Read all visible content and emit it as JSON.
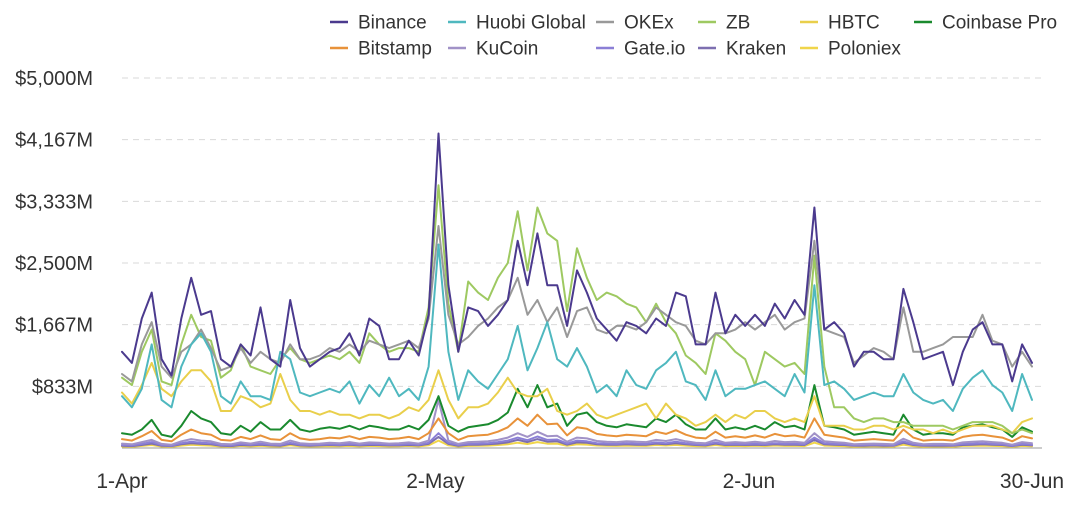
{
  "chart_data": {
    "type": "line",
    "yaxis": {
      "min": 0,
      "max": 5000,
      "unit": "M",
      "ticks": [
        833,
        1667,
        2500,
        3333,
        4167,
        5000
      ],
      "tick_labels": [
        "$833M",
        "$1,667M",
        "$2,500M",
        "$3,333M",
        "$4,167M",
        "$5,000M"
      ],
      "grid": true
    },
    "xaxis": {
      "tick_dates": [
        "2020-04-01",
        "2020-05-02",
        "2020-06-02",
        "2020-06-30"
      ],
      "tick_labels": [
        "1-Apr",
        "2-May",
        "2-Jun",
        "30-Jun"
      ]
    },
    "legend_position": "top",
    "series": [
      {
        "name": "Binance",
        "color": "#4b3a8e",
        "values": [
          1300,
          1150,
          1750,
          2100,
          1200,
          980,
          1750,
          2300,
          1800,
          1850,
          1200,
          1100,
          1400,
          1250,
          1900,
          1200,
          1100,
          2000,
          1350,
          1100,
          1200,
          1300,
          1350,
          1550,
          1250,
          1750,
          1650,
          1200,
          1200,
          1450,
          1250,
          1800,
          4250,
          2200,
          1300,
          1900,
          1850,
          1650,
          1800,
          2000,
          2800,
          2200,
          2900,
          2200,
          2200,
          1650,
          2400,
          2100,
          1750,
          1600,
          1450,
          1700,
          1650,
          1550,
          1750,
          1650,
          2100,
          2050,
          1400,
          1400,
          2100,
          1550,
          1800,
          1650,
          1800,
          1650,
          1950,
          1750,
          2000,
          1800,
          3250,
          1600,
          1700,
          1550,
          1100,
          1300,
          1300,
          1200,
          1200,
          2150,
          1700,
          1200,
          1250,
          1300,
          850,
          1300,
          1600,
          1700,
          1400,
          1400,
          900,
          1400,
          1150
        ]
      },
      {
        "name": "Huobi Global",
        "color": "#4fb8bf",
        "values": [
          700,
          550,
          800,
          1400,
          650,
          550,
          1100,
          1400,
          1550,
          1300,
          700,
          600,
          900,
          700,
          700,
          650,
          1300,
          1200,
          750,
          700,
          750,
          800,
          750,
          900,
          600,
          850,
          700,
          950,
          700,
          800,
          650,
          1100,
          2750,
          1300,
          650,
          1050,
          900,
          800,
          1000,
          1200,
          1650,
          1050,
          1350,
          1700,
          1200,
          1100,
          1350,
          1100,
          750,
          850,
          700,
          1050,
          850,
          800,
          1050,
          1150,
          1300,
          900,
          850,
          650,
          1050,
          700,
          800,
          800,
          850,
          900,
          800,
          700,
          1000,
          750,
          2200,
          850,
          900,
          800,
          650,
          700,
          750,
          700,
          700,
          1000,
          750,
          650,
          600,
          650,
          500,
          800,
          950,
          1050,
          850,
          750,
          500,
          1000,
          650
        ]
      },
      {
        "name": "OKEx",
        "color": "#999999",
        "values": [
          1000,
          900,
          1400,
          1700,
          1100,
          950,
          1300,
          1400,
          1600,
          1350,
          1050,
          1100,
          1350,
          1150,
          1300,
          1200,
          1150,
          1400,
          1200,
          1200,
          1250,
          1350,
          1300,
          1400,
          1300,
          1450,
          1400,
          1350,
          1400,
          1450,
          1350,
          1750,
          3000,
          1800,
          1400,
          1500,
          1650,
          1750,
          1900,
          2000,
          2300,
          1800,
          2000,
          1700,
          1900,
          1500,
          1850,
          1900,
          1600,
          1550,
          1650,
          1650,
          1600,
          1700,
          1900,
          1800,
          1700,
          1650,
          1450,
          1400,
          1550,
          1550,
          1600,
          1700,
          1600,
          1700,
          1800,
          1600,
          1700,
          1750,
          2800,
          1600,
          1550,
          1500,
          1150,
          1250,
          1350,
          1300,
          1200,
          1900,
          1300,
          1300,
          1350,
          1400,
          1500,
          1500,
          1500,
          1800,
          1450,
          1400,
          1100,
          1300,
          1100
        ]
      },
      {
        "name": "ZB",
        "color": "#9ec961",
        "values": [
          950,
          850,
          1300,
          1600,
          900,
          850,
          1400,
          1800,
          1500,
          1450,
          950,
          1050,
          1400,
          1100,
          1050,
          1000,
          1200,
          1350,
          1200,
          1150,
          1200,
          1250,
          1200,
          1300,
          1150,
          1550,
          1400,
          1300,
          1350,
          1350,
          1300,
          1900,
          3550,
          1950,
          1300,
          2250,
          2100,
          2000,
          2300,
          2500,
          3200,
          2400,
          3250,
          2900,
          2800,
          1850,
          2700,
          2300,
          2000,
          2100,
          2050,
          1950,
          1900,
          1700,
          1950,
          1700,
          1550,
          1250,
          1150,
          1000,
          1550,
          1450,
          1300,
          1200,
          850,
          1300,
          1200,
          1100,
          1150,
          1000,
          2600,
          1100,
          550,
          550,
          400,
          350,
          400,
          400,
          350,
          350,
          300,
          300,
          300,
          300,
          250,
          300,
          350,
          350,
          350,
          300,
          200,
          250,
          200
        ]
      },
      {
        "name": "HBTC",
        "color": "#e9cf4b",
        "values": [
          750,
          600,
          850,
          1150,
          800,
          700,
          900,
          1050,
          1050,
          900,
          500,
          500,
          700,
          650,
          550,
          600,
          1000,
          650,
          500,
          500,
          450,
          500,
          450,
          450,
          400,
          450,
          450,
          400,
          450,
          550,
          500,
          650,
          1050,
          650,
          400,
          550,
          550,
          600,
          750,
          950,
          750,
          700,
          700,
          800,
          500,
          450,
          500,
          600,
          450,
          400,
          450,
          500,
          550,
          600,
          400,
          600,
          450,
          400,
          300,
          350,
          450,
          350,
          450,
          400,
          500,
          500,
          400,
          350,
          400,
          350,
          700,
          300,
          300,
          300,
          250,
          250,
          300,
          300,
          250,
          300,
          250,
          250,
          200,
          250,
          200,
          250,
          300,
          300,
          300,
          250,
          200,
          350,
          400
        ]
      },
      {
        "name": "Coinbase Pro",
        "color": "#1a8a2e",
        "values": [
          200,
          180,
          250,
          380,
          180,
          150,
          300,
          500,
          400,
          350,
          200,
          180,
          300,
          220,
          350,
          250,
          250,
          380,
          250,
          220,
          260,
          280,
          260,
          300,
          250,
          300,
          280,
          250,
          250,
          300,
          250,
          380,
          700,
          300,
          220,
          280,
          300,
          320,
          380,
          480,
          800,
          550,
          850,
          550,
          600,
          300,
          450,
          480,
          350,
          300,
          280,
          320,
          300,
          280,
          400,
          350,
          450,
          320,
          250,
          250,
          400,
          250,
          280,
          250,
          300,
          250,
          350,
          280,
          300,
          250,
          850,
          300,
          280,
          250,
          180,
          200,
          220,
          200,
          180,
          450,
          250,
          180,
          200,
          200,
          180,
          280,
          300,
          320,
          280,
          250,
          150,
          280,
          220
        ]
      },
      {
        "name": "Bitstamp",
        "color": "#e8923a",
        "values": [
          120,
          100,
          160,
          230,
          110,
          90,
          180,
          250,
          200,
          180,
          110,
          100,
          150,
          120,
          170,
          120,
          110,
          200,
          130,
          110,
          120,
          140,
          130,
          160,
          120,
          150,
          140,
          120,
          130,
          150,
          120,
          200,
          400,
          200,
          110,
          160,
          170,
          180,
          220,
          280,
          400,
          300,
          450,
          320,
          330,
          170,
          280,
          260,
          190,
          170,
          160,
          180,
          170,
          160,
          220,
          190,
          240,
          180,
          140,
          130,
          220,
          140,
          160,
          140,
          170,
          140,
          190,
          160,
          170,
          140,
          400,
          180,
          160,
          140,
          100,
          110,
          120,
          110,
          100,
          250,
          140,
          100,
          110,
          110,
          100,
          150,
          170,
          180,
          160,
          140,
          90,
          160,
          130
        ]
      },
      {
        "name": "KuCoin",
        "color": "#a192c7",
        "values": [
          60,
          50,
          80,
          110,
          55,
          45,
          90,
          120,
          100,
          90,
          55,
          50,
          75,
          60,
          85,
          60,
          55,
          100,
          65,
          55,
          60,
          70,
          65,
          80,
          60,
          75,
          70,
          60,
          65,
          75,
          60,
          100,
          650,
          100,
          55,
          80,
          85,
          90,
          110,
          140,
          200,
          150,
          220,
          160,
          165,
          85,
          140,
          130,
          95,
          85,
          80,
          90,
          85,
          80,
          110,
          95,
          120,
          90,
          70,
          65,
          110,
          70,
          80,
          70,
          85,
          70,
          95,
          80,
          85,
          70,
          200,
          90,
          80,
          70,
          50,
          55,
          60,
          55,
          50,
          125,
          70,
          50,
          55,
          55,
          50,
          75,
          85,
          90,
          80,
          70,
          45,
          80,
          65
        ]
      },
      {
        "name": "Gate.io",
        "color": "#8b7fd6",
        "values": [
          40,
          35,
          55,
          80,
          40,
          30,
          65,
          85,
          70,
          65,
          40,
          35,
          55,
          45,
          60,
          45,
          40,
          70,
          45,
          40,
          45,
          50,
          45,
          55,
          45,
          55,
          50,
          45,
          45,
          55,
          45,
          70,
          200,
          70,
          40,
          55,
          60,
          65,
          80,
          100,
          140,
          105,
          155,
          110,
          115,
          60,
          100,
          90,
          65,
          60,
          55,
          65,
          60,
          55,
          75,
          65,
          85,
          65,
          50,
          45,
          75,
          50,
          55,
          50,
          60,
          50,
          65,
          55,
          60,
          50,
          140,
          65,
          55,
          50,
          35,
          40,
          45,
          40,
          35,
          90,
          50,
          35,
          40,
          40,
          35,
          55,
          60,
          65,
          55,
          50,
          30,
          55,
          45
        ]
      },
      {
        "name": "Kraken",
        "color": "#7d6fb0",
        "values": [
          30,
          25,
          40,
          60,
          30,
          25,
          50,
          65,
          55,
          50,
          30,
          25,
          40,
          35,
          45,
          35,
          30,
          55,
          35,
          30,
          35,
          40,
          35,
          45,
          35,
          40,
          40,
          35,
          35,
          40,
          35,
          55,
          150,
          55,
          30,
          45,
          45,
          50,
          60,
          75,
          110,
          80,
          120,
          85,
          90,
          45,
          75,
          70,
          50,
          45,
          45,
          50,
          45,
          45,
          60,
          50,
          65,
          50,
          40,
          35,
          60,
          40,
          45,
          40,
          45,
          40,
          50,
          45,
          45,
          40,
          110,
          50,
          45,
          40,
          30,
          30,
          35,
          30,
          30,
          70,
          40,
          30,
          30,
          30,
          30,
          40,
          45,
          50,
          45,
          40,
          25,
          45,
          35
        ]
      },
      {
        "name": "Poloniex",
        "color": "#f0d54a",
        "values": [
          20,
          18,
          28,
          40,
          20,
          16,
          32,
          44,
          36,
          32,
          20,
          18,
          28,
          22,
          30,
          22,
          20,
          36,
          24,
          20,
          22,
          26,
          24,
          28,
          22,
          28,
          26,
          22,
          24,
          28,
          22,
          36,
          100,
          36,
          20,
          28,
          30,
          32,
          40,
          50,
          72,
          54,
          80,
          58,
          60,
          30,
          50,
          46,
          34,
          30,
          28,
          32,
          30,
          28,
          40,
          34,
          42,
          32,
          26,
          24,
          40,
          26,
          28,
          26,
          30,
          26,
          34,
          28,
          30,
          26,
          72,
          32,
          28,
          26,
          18,
          20,
          22,
          20,
          18,
          46,
          26,
          18,
          20,
          20,
          18,
          28,
          30,
          32,
          28,
          26,
          16,
          28,
          24
        ]
      }
    ],
    "legend_entries": [
      {
        "name": "Binance",
        "color": "#4b3a8e"
      },
      {
        "name": "Huobi Global",
        "color": "#4fb8bf"
      },
      {
        "name": "OKEx",
        "color": "#999999"
      },
      {
        "name": "ZB",
        "color": "#9ec961"
      },
      {
        "name": "HBTC",
        "color": "#e9cf4b"
      },
      {
        "name": "Coinbase Pro",
        "color": "#1a8a2e"
      },
      {
        "name": "Bitstamp",
        "color": "#e8923a"
      },
      {
        "name": "KuCoin",
        "color": "#a192c7"
      },
      {
        "name": "Gate.io",
        "color": "#8b7fd6"
      },
      {
        "name": "Kraken",
        "color": "#7d6fb0"
      },
      {
        "name": "Poloniex",
        "color": "#f0d54a"
      }
    ]
  }
}
